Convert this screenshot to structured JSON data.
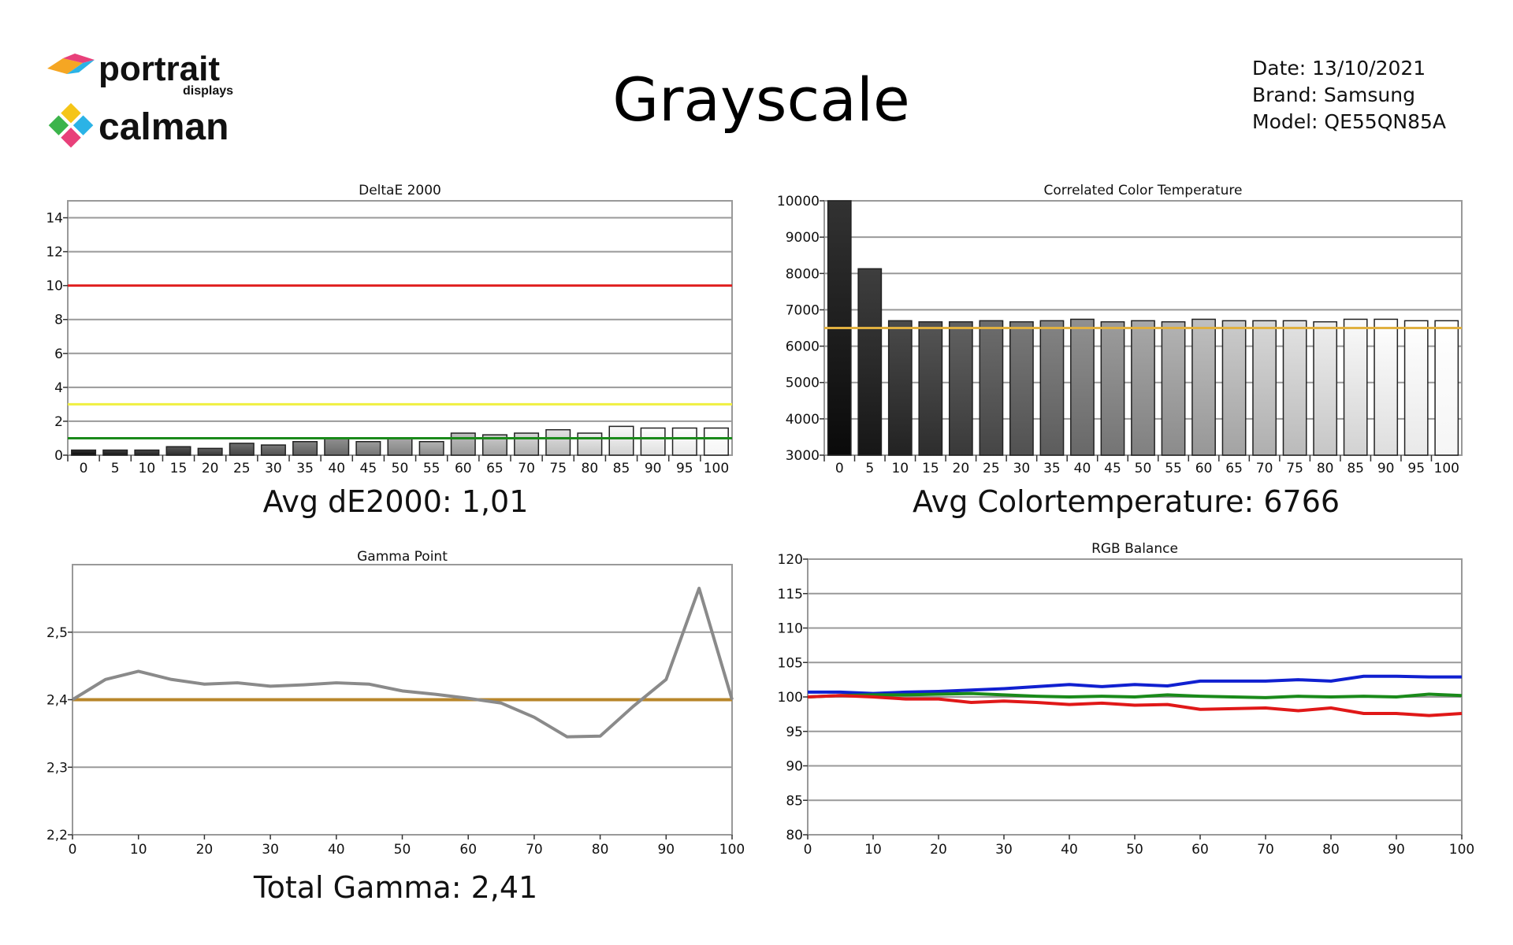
{
  "header": {
    "title": "Grayscale",
    "logo_top": "portrait",
    "logo_top_sub": "displays",
    "logo_bottom": "calman",
    "date": "Date: 13/10/2021",
    "brand": "Brand: Samsung",
    "model": "Model: QE55QN85A"
  },
  "summaries": {
    "avg_de": "Avg  dE2000: 1,01",
    "avg_cct": "Avg Colortemperature: 6766",
    "total_gamma": "Total Gamma: 2,41"
  },
  "chart_data": [
    {
      "id": "deltae",
      "type": "bar",
      "title": "DeltaE 2000",
      "categories": [
        "0",
        "5",
        "10",
        "15",
        "20",
        "25",
        "30",
        "35",
        "40",
        "45",
        "50",
        "55",
        "60",
        "65",
        "70",
        "75",
        "80",
        "85",
        "90",
        "95",
        "100"
      ],
      "values": [
        0.3,
        0.3,
        0.3,
        0.5,
        0.4,
        0.7,
        0.6,
        0.8,
        1.0,
        0.8,
        1.0,
        0.8,
        1.3,
        1.2,
        1.3,
        1.5,
        1.3,
        1.7,
        1.6,
        1.6,
        1.6
      ],
      "ylim": [
        0,
        15
      ],
      "yticks": [
        "0",
        "2",
        "4",
        "6",
        "8",
        "10",
        "12",
        "14"
      ],
      "reference_lines": [
        {
          "value": 10,
          "color": "#e02020"
        },
        {
          "value": 3,
          "color": "#f0f040"
        },
        {
          "value": 1,
          "color": "#1a8a1a"
        }
      ],
      "grid": true
    },
    {
      "id": "cct",
      "type": "bar",
      "title": "Correlated Color Temperature",
      "categories": [
        "0",
        "5",
        "10",
        "15",
        "20",
        "25",
        "30",
        "35",
        "40",
        "45",
        "50",
        "55",
        "60",
        "65",
        "70",
        "75",
        "80",
        "85",
        "90",
        "95",
        "100"
      ],
      "values": [
        10000,
        8130,
        6700,
        6670,
        6670,
        6700,
        6670,
        6700,
        6740,
        6670,
        6700,
        6670,
        6740,
        6700,
        6700,
        6700,
        6670,
        6740,
        6740,
        6700,
        6700
      ],
      "ylim": [
        3000,
        10000
      ],
      "yticks": [
        "3000",
        "4000",
        "5000",
        "6000",
        "7000",
        "8000",
        "9000",
        "10000"
      ],
      "reference_lines": [
        {
          "value": 6500,
          "color": "#e0b040"
        }
      ],
      "grid": true
    },
    {
      "id": "gamma",
      "type": "line",
      "title": "Gamma Point",
      "x": [
        0,
        5,
        10,
        15,
        20,
        25,
        30,
        35,
        40,
        45,
        50,
        55,
        60,
        65,
        70,
        75,
        80,
        85,
        90,
        95,
        100
      ],
      "series": [
        {
          "values": [
            2.4,
            2.43,
            2.442,
            2.43,
            2.423,
            2.425,
            2.42,
            2.422,
            2.425,
            2.423,
            2.413,
            2.408,
            2.402,
            2.395,
            2.374,
            2.345,
            2.346,
            2.39,
            2.43,
            2.565,
            2.4
          ],
          "color": "#8a8a8a"
        }
      ],
      "reference_lines": [
        {
          "value": 2.4,
          "color": "#b8862a"
        }
      ],
      "ylim": [
        2.2,
        2.6
      ],
      "yticks": [
        "2,2",
        "2,3",
        "2,4",
        "2,5"
      ],
      "xticks": [
        "0",
        "10",
        "20",
        "30",
        "40",
        "50",
        "60",
        "70",
        "80",
        "90",
        "100"
      ],
      "grid": true
    },
    {
      "id": "rgb",
      "type": "line",
      "title": "RGB Balance",
      "x": [
        0,
        5,
        10,
        15,
        20,
        25,
        30,
        35,
        40,
        45,
        50,
        55,
        60,
        65,
        70,
        75,
        80,
        85,
        90,
        95,
        100
      ],
      "series": [
        {
          "values": [
            100.7,
            100.7,
            100.5,
            100.7,
            100.8,
            101,
            101.2,
            101.5,
            101.8,
            101.5,
            101.8,
            101.6,
            102.3,
            102.3,
            102.3,
            102.5,
            102.3,
            103,
            103,
            102.9,
            102.9
          ],
          "color": "#1020d0"
        },
        {
          "values": [
            100,
            100.2,
            100.3,
            100.3,
            100.4,
            100.5,
            100.3,
            100.1,
            100,
            100.1,
            100,
            100.3,
            100.1,
            100,
            99.9,
            100.1,
            100,
            100.1,
            100,
            100.4,
            100.2
          ],
          "color": "#1a8a1a"
        },
        {
          "values": [
            100,
            100.2,
            100,
            99.7,
            99.7,
            99.2,
            99.4,
            99.2,
            98.9,
            99.1,
            98.8,
            98.9,
            98.2,
            98.3,
            98.4,
            98,
            98.4,
            97.6,
            97.6,
            97.3,
            97.6
          ],
          "color": "#e01818"
        }
      ],
      "ylim": [
        80,
        120
      ],
      "yticks": [
        "80",
        "85",
        "90",
        "95",
        "100",
        "105",
        "110",
        "115",
        "120"
      ],
      "xticks": [
        "0",
        "10",
        "20",
        "30",
        "40",
        "50",
        "60",
        "70",
        "80",
        "90",
        "100"
      ],
      "grid": true
    }
  ]
}
